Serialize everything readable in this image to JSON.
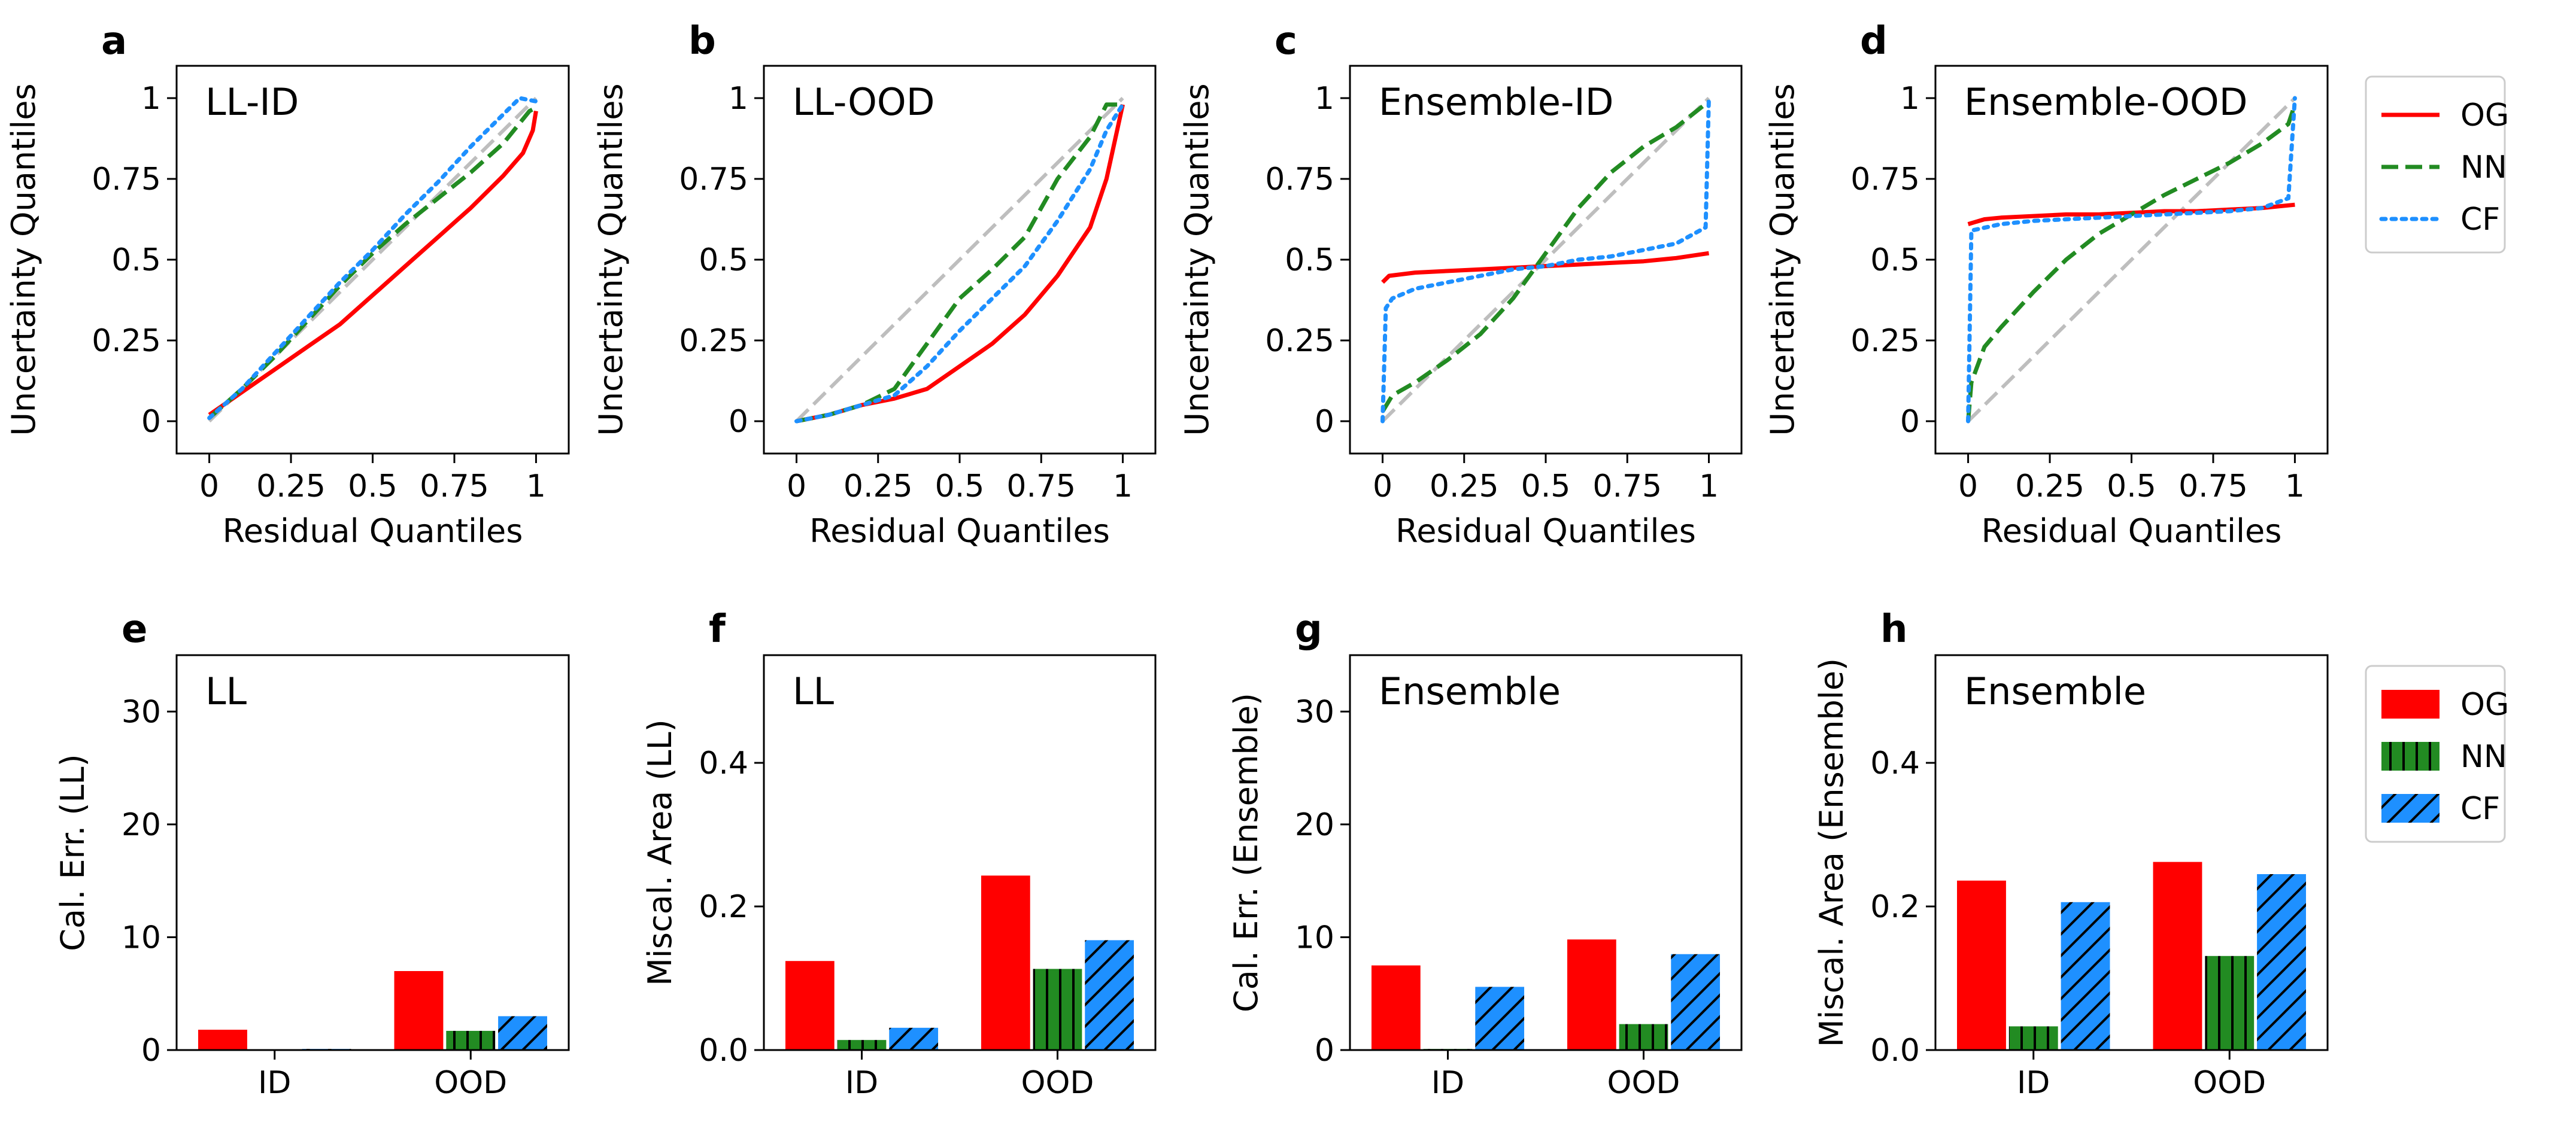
{
  "colors": {
    "OG": "#ff0000",
    "NN": "#228b22",
    "CF": "#1e90ff",
    "diagonal": "#bebebe",
    "hatch": "#000000"
  },
  "legend_top": {
    "entries": [
      "OG",
      "NN",
      "CF"
    ],
    "styles": [
      "solid",
      "dashed",
      "dotted"
    ],
    "placement": "right"
  },
  "legend_bottom": {
    "entries": [
      "OG",
      "NN",
      "CF"
    ],
    "hatch": [
      "none",
      "vertical",
      "diagonal"
    ],
    "placement": "right"
  },
  "chart_data": [
    {
      "panel": "a",
      "type": "line",
      "title": "LL-ID",
      "xlabel": "Residual Quantiles",
      "ylabel": "Uncertainty Quantiles",
      "xlim": [
        -0.1,
        1.1
      ],
      "ylim": [
        -0.1,
        1.1
      ],
      "xticks": [
        "0",
        "0.25",
        "0.5",
        "0.75",
        "1"
      ],
      "yticks": [
        "0",
        "0.25",
        "0.5",
        "0.75",
        "1"
      ],
      "reference_diagonal": true,
      "series": [
        {
          "name": "OG",
          "style": "solid",
          "x": [
            0,
            0.1,
            0.2,
            0.3,
            0.4,
            0.5,
            0.6,
            0.7,
            0.8,
            0.9,
            0.96,
            0.99,
            1.0
          ],
          "y": [
            0.02,
            0.09,
            0.16,
            0.23,
            0.3,
            0.39,
            0.48,
            0.57,
            0.66,
            0.76,
            0.83,
            0.9,
            0.96
          ]
        },
        {
          "name": "NN",
          "style": "dashed",
          "x": [
            0,
            0.1,
            0.2,
            0.3,
            0.4,
            0.5,
            0.6,
            0.7,
            0.8,
            0.9,
            0.98,
            1.0
          ],
          "y": [
            0.01,
            0.1,
            0.2,
            0.31,
            0.42,
            0.52,
            0.61,
            0.69,
            0.77,
            0.86,
            0.96,
            0.97
          ]
        },
        {
          "name": "CF",
          "style": "dotted",
          "x": [
            0,
            0.1,
            0.2,
            0.3,
            0.4,
            0.5,
            0.6,
            0.7,
            0.8,
            0.9,
            0.95,
            1.0
          ],
          "y": [
            0.01,
            0.1,
            0.21,
            0.32,
            0.43,
            0.53,
            0.64,
            0.74,
            0.85,
            0.95,
            1.0,
            0.99
          ]
        }
      ]
    },
    {
      "panel": "b",
      "type": "line",
      "title": "LL-OOD",
      "xlabel": "Residual Quantiles",
      "ylabel": "Uncertainty Quantiles",
      "xlim": [
        -0.1,
        1.1
      ],
      "ylim": [
        -0.1,
        1.1
      ],
      "xticks": [
        "0",
        "0.25",
        "0.5",
        "0.75",
        "1"
      ],
      "yticks": [
        "0",
        "0.25",
        "0.5",
        "0.75",
        "1"
      ],
      "reference_diagonal": true,
      "series": [
        {
          "name": "OG",
          "style": "solid",
          "x": [
            0,
            0.1,
            0.2,
            0.3,
            0.4,
            0.5,
            0.6,
            0.7,
            0.8,
            0.9,
            0.95,
            1.0
          ],
          "y": [
            0.0,
            0.02,
            0.05,
            0.07,
            0.1,
            0.17,
            0.24,
            0.33,
            0.45,
            0.6,
            0.75,
            0.98
          ]
        },
        {
          "name": "NN",
          "style": "dashed",
          "x": [
            0,
            0.1,
            0.2,
            0.3,
            0.4,
            0.5,
            0.6,
            0.7,
            0.8,
            0.9,
            0.95,
            1.0
          ],
          "y": [
            0.0,
            0.02,
            0.05,
            0.1,
            0.24,
            0.38,
            0.47,
            0.57,
            0.75,
            0.88,
            0.98,
            0.98
          ]
        },
        {
          "name": "CF",
          "style": "dotted",
          "x": [
            0,
            0.1,
            0.2,
            0.3,
            0.4,
            0.5,
            0.6,
            0.7,
            0.8,
            0.9,
            0.95,
            1.0
          ],
          "y": [
            0.0,
            0.02,
            0.05,
            0.08,
            0.17,
            0.28,
            0.38,
            0.48,
            0.62,
            0.78,
            0.9,
            0.98
          ]
        }
      ]
    },
    {
      "panel": "c",
      "type": "line",
      "title": "Ensemble-ID",
      "xlabel": "Residual Quantiles",
      "ylabel": "Uncertainty Quantiles",
      "xlim": [
        -0.1,
        1.1
      ],
      "ylim": [
        -0.1,
        1.1
      ],
      "xticks": [
        "0",
        "0.25",
        "0.5",
        "0.75",
        "1"
      ],
      "yticks": [
        "0",
        "0.25",
        "0.5",
        "0.75",
        "1"
      ],
      "reference_diagonal": true,
      "series": [
        {
          "name": "OG",
          "style": "solid",
          "x": [
            0,
            0.02,
            0.1,
            0.2,
            0.3,
            0.4,
            0.5,
            0.6,
            0.7,
            0.8,
            0.9,
            1.0
          ],
          "y": [
            0.43,
            0.45,
            0.46,
            0.465,
            0.47,
            0.475,
            0.48,
            0.485,
            0.49,
            0.495,
            0.505,
            0.52
          ]
        },
        {
          "name": "NN",
          "style": "dashed",
          "x": [
            0,
            0.03,
            0.1,
            0.2,
            0.3,
            0.4,
            0.5,
            0.6,
            0.7,
            0.8,
            0.9,
            1.0
          ],
          "y": [
            0.03,
            0.08,
            0.12,
            0.19,
            0.27,
            0.38,
            0.52,
            0.66,
            0.77,
            0.85,
            0.91,
            0.99
          ]
        },
        {
          "name": "CF",
          "style": "dotted",
          "x": [
            0,
            0.01,
            0.03,
            0.1,
            0.2,
            0.3,
            0.4,
            0.5,
            0.6,
            0.7,
            0.8,
            0.9,
            0.99,
            1.0
          ],
          "y": [
            0.0,
            0.35,
            0.38,
            0.41,
            0.43,
            0.45,
            0.47,
            0.48,
            0.5,
            0.51,
            0.53,
            0.55,
            0.6,
            1.0
          ]
        }
      ]
    },
    {
      "panel": "d",
      "type": "line",
      "title": "Ensemble-OOD",
      "xlabel": "Residual Quantiles",
      "ylabel": "Uncertainty Quantiles",
      "xlim": [
        -0.1,
        1.1
      ],
      "ylim": [
        -0.1,
        1.1
      ],
      "xticks": [
        "0",
        "0.25",
        "0.5",
        "0.75",
        "1"
      ],
      "yticks": [
        "0",
        "0.25",
        "0.5",
        "0.75",
        "1"
      ],
      "reference_diagonal": true,
      "series": [
        {
          "name": "OG",
          "style": "solid",
          "x": [
            0,
            0.05,
            0.1,
            0.2,
            0.3,
            0.4,
            0.5,
            0.6,
            0.7,
            0.8,
            0.9,
            1.0
          ],
          "y": [
            0.61,
            0.625,
            0.63,
            0.635,
            0.64,
            0.64,
            0.645,
            0.65,
            0.65,
            0.655,
            0.66,
            0.67
          ]
        },
        {
          "name": "NN",
          "style": "dashed",
          "x": [
            0,
            0.01,
            0.05,
            0.1,
            0.2,
            0.3,
            0.4,
            0.5,
            0.6,
            0.7,
            0.8,
            0.9,
            0.98,
            1.0
          ],
          "y": [
            0.0,
            0.12,
            0.23,
            0.29,
            0.4,
            0.5,
            0.58,
            0.64,
            0.7,
            0.75,
            0.8,
            0.86,
            0.92,
            0.98
          ]
        },
        {
          "name": "CF",
          "style": "dotted",
          "x": [
            0,
            0.01,
            0.1,
            0.2,
            0.3,
            0.4,
            0.5,
            0.6,
            0.7,
            0.8,
            0.9,
            0.98,
            1.0
          ],
          "y": [
            0.0,
            0.59,
            0.61,
            0.62,
            0.625,
            0.63,
            0.635,
            0.64,
            0.645,
            0.65,
            0.66,
            0.69,
            1.0
          ]
        }
      ]
    },
    {
      "panel": "e",
      "type": "bar",
      "title": "LL",
      "ylabel": "Cal. Err. (LL)",
      "categories": [
        "ID",
        "OOD"
      ],
      "ylim": [
        0,
        35
      ],
      "yticks": [
        "0",
        "10",
        "20",
        "30"
      ],
      "series": [
        {
          "name": "OG",
          "values": [
            1.8,
            7.0
          ]
        },
        {
          "name": "NN",
          "values": [
            0.05,
            1.7
          ]
        },
        {
          "name": "CF",
          "values": [
            0.1,
            3.0
          ]
        }
      ]
    },
    {
      "panel": "f",
      "type": "bar",
      "title": "LL",
      "ylabel": "Miscal. Area (LL)",
      "categories": [
        "ID",
        "OOD"
      ],
      "ylim": [
        0,
        0.55
      ],
      "yticks": [
        "0.0",
        "0.2",
        "0.4"
      ],
      "series": [
        {
          "name": "OG",
          "values": [
            0.124,
            0.243
          ]
        },
        {
          "name": "NN",
          "values": [
            0.014,
            0.113
          ]
        },
        {
          "name": "CF",
          "values": [
            0.031,
            0.153
          ]
        }
      ]
    },
    {
      "panel": "g",
      "type": "bar",
      "title": "Ensemble",
      "ylabel": "Cal. Err. (Ensemble)",
      "categories": [
        "ID",
        "OOD"
      ],
      "ylim": [
        0,
        35
      ],
      "yticks": [
        "0",
        "10",
        "20",
        "30"
      ],
      "series": [
        {
          "name": "OG",
          "values": [
            7.5,
            9.8
          ]
        },
        {
          "name": "NN",
          "values": [
            0.1,
            2.3
          ]
        },
        {
          "name": "CF",
          "values": [
            5.6,
            8.5
          ]
        }
      ]
    },
    {
      "panel": "h",
      "type": "bar",
      "title": "Ensemble",
      "ylabel": "Miscal. Area (Ensemble)",
      "categories": [
        "ID",
        "OOD"
      ],
      "ylim": [
        0,
        0.55
      ],
      "yticks": [
        "0.0",
        "0.2",
        "0.4"
      ],
      "series": [
        {
          "name": "OG",
          "values": [
            0.236,
            0.262
          ]
        },
        {
          "name": "NN",
          "values": [
            0.033,
            0.131
          ]
        },
        {
          "name": "CF",
          "values": [
            0.206,
            0.245
          ]
        }
      ]
    }
  ]
}
